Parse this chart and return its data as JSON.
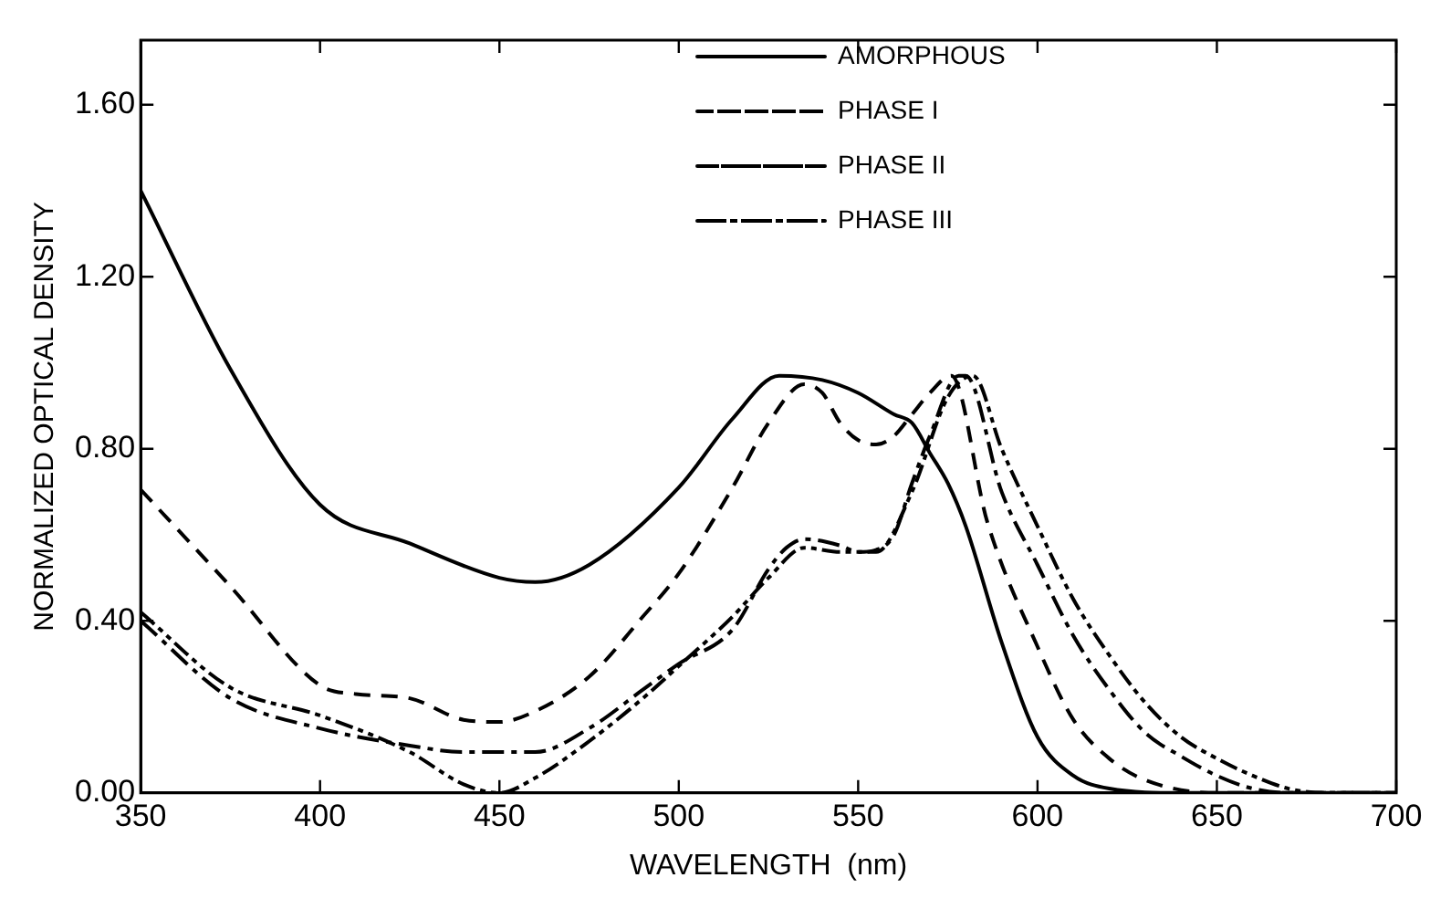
{
  "chart_data": {
    "type": "line",
    "xlabel": "WAVELENGTH  (nm)",
    "ylabel": "NORMALIZED OPTICAL DENSITY",
    "xlim": [
      350,
      700
    ],
    "xticks": [
      350,
      400,
      450,
      500,
      550,
      600,
      650,
      700
    ],
    "ylim": [
      0,
      1.75
    ],
    "yticks": [
      {
        "value": 0,
        "label": "0.00"
      },
      {
        "value": 0.4,
        "label": "0.40"
      },
      {
        "value": 0.8,
        "label": "0.80"
      },
      {
        "value": 1.2,
        "label": "1.20"
      },
      {
        "value": 1.6,
        "label": "1.60"
      }
    ],
    "legend": "top right",
    "marker": "none",
    "series": [
      {
        "name": "AMORPHOUS",
        "color": "#000000",
        "line_style": "solid",
        "x": [
          350,
          375,
          400,
          425,
          450,
          460,
          475,
          500,
          515,
          528,
          540,
          550,
          560,
          565,
          570,
          575,
          580,
          590,
          600,
          610,
          620,
          640,
          700
        ],
        "values": [
          1.4,
          0.985,
          0.67,
          0.58,
          0.5,
          0.49,
          0.53,
          0.71,
          0.87,
          0.97,
          0.96,
          0.93,
          0.88,
          0.86,
          0.79,
          0.72,
          0.62,
          0.35,
          0.13,
          0.04,
          0.01,
          0,
          0
        ]
      },
      {
        "name": "PHASE I",
        "color": "#000000",
        "line_style": "dashed",
        "x": [
          350,
          375,
          400,
          410,
          425,
          440,
          450,
          460,
          475,
          490,
          500,
          515,
          525,
          535,
          540,
          545,
          550,
          555,
          560,
          565,
          570,
          576,
          586,
          600,
          610,
          620,
          630,
          650,
          700
        ],
        "values": [
          0.705,
          0.48,
          0.25,
          0.23,
          0.22,
          0.17,
          0.165,
          0.19,
          0.27,
          0.41,
          0.51,
          0.71,
          0.86,
          0.95,
          0.93,
          0.86,
          0.82,
          0.81,
          0.83,
          0.88,
          0.93,
          0.97,
          0.63,
          0.34,
          0.17,
          0.08,
          0.03,
          0,
          0
        ]
      },
      {
        "name": "PHASE II",
        "color": "#000000",
        "line_style": "dashed",
        "x": [
          350,
          375,
          400,
          425,
          440,
          460,
          475,
          490,
          500,
          515,
          525,
          530,
          535,
          545,
          550,
          555,
          560,
          565,
          570,
          578,
          580,
          590,
          600,
          610,
          620,
          630,
          640,
          650,
          660,
          670,
          700
        ],
        "values": [
          0.4,
          0.22,
          0.15,
          0.11,
          0.095,
          0.095,
          0.15,
          0.24,
          0.3,
          0.38,
          0.52,
          0.57,
          0.59,
          0.575,
          0.56,
          0.565,
          0.6,
          0.72,
          0.83,
          0.97,
          0.97,
          0.7,
          0.53,
          0.365,
          0.24,
          0.14,
          0.085,
          0.04,
          0.01,
          0,
          0
        ]
      },
      {
        "name": "PHASE III",
        "color": "#000000",
        "line_style": "dashed",
        "x": [
          350,
          375,
          400,
          425,
          440,
          450,
          460,
          475,
          490,
          500,
          515,
          525,
          535,
          545,
          555,
          565,
          575,
          582,
          590,
          600,
          610,
          620,
          630,
          640,
          650,
          660,
          670,
          680,
          700
        ],
        "values": [
          0.42,
          0.245,
          0.18,
          0.095,
          0.02,
          0,
          0.035,
          0.12,
          0.22,
          0.295,
          0.41,
          0.5,
          0.57,
          0.56,
          0.56,
          0.7,
          0.92,
          0.97,
          0.8,
          0.62,
          0.45,
          0.32,
          0.21,
          0.13,
          0.08,
          0.04,
          0.01,
          0,
          0
        ]
      }
    ]
  }
}
